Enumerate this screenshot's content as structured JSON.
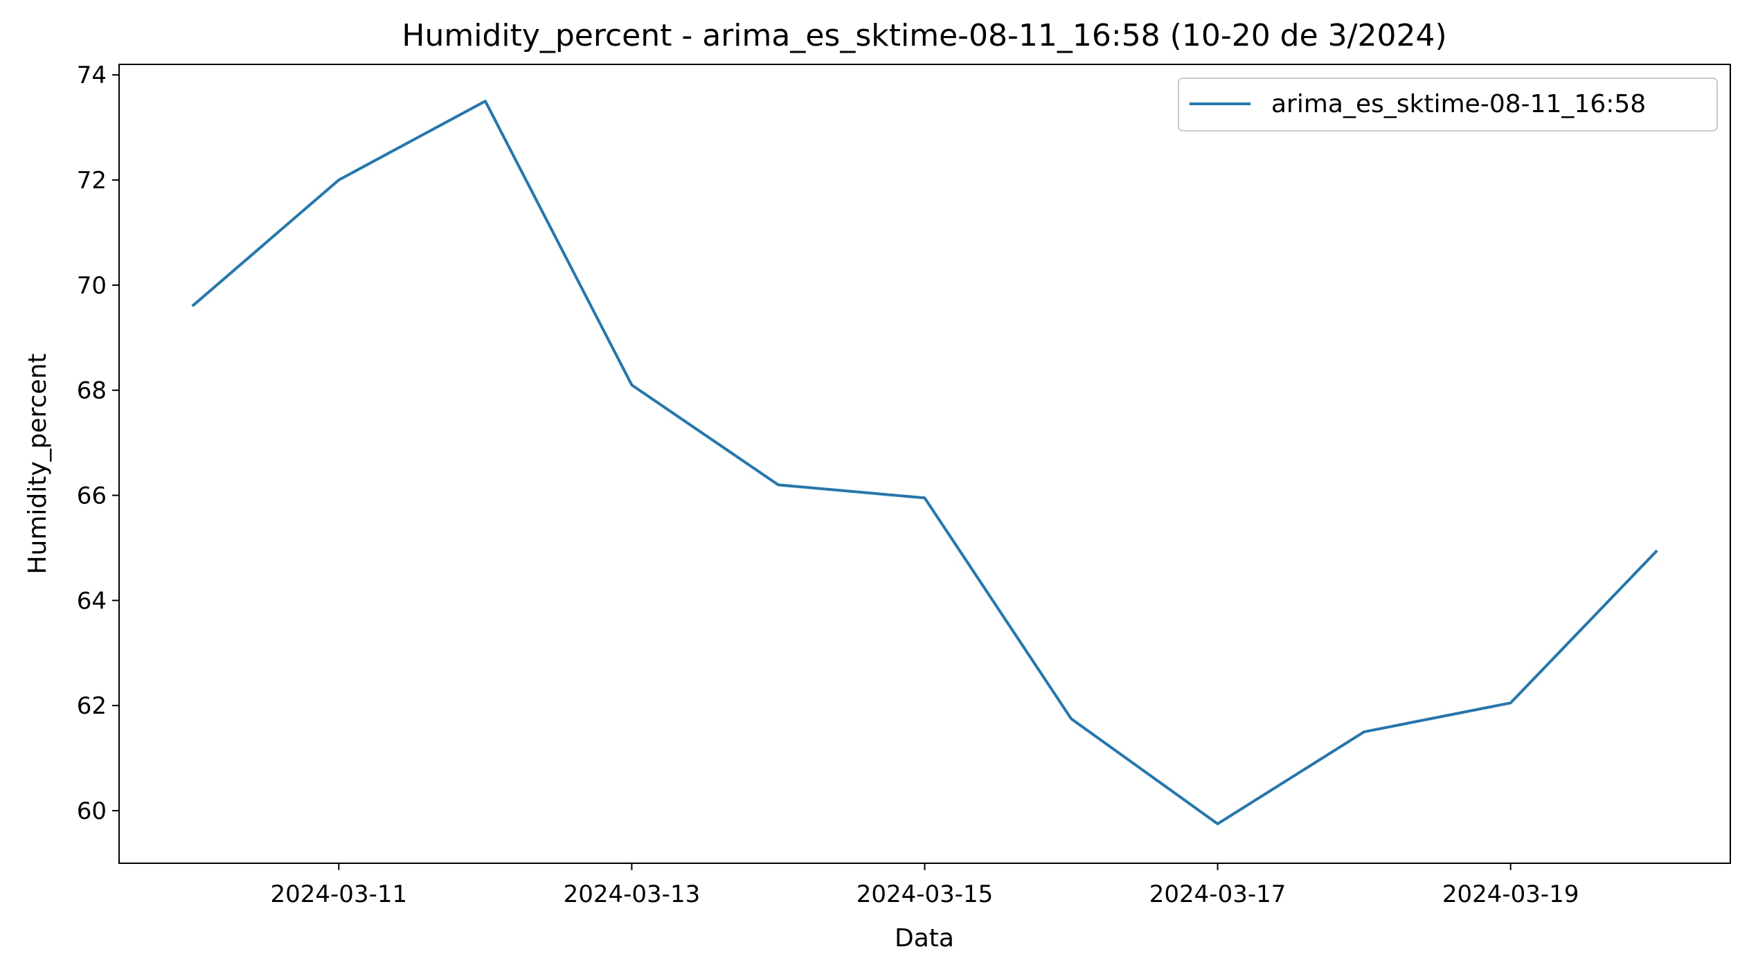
{
  "chart_data": {
    "type": "line",
    "title": "Humidity_percent - arima_es_sktime-08-11_16:58 (10-20 de 3/2024)",
    "xlabel": "Data",
    "ylabel": "Humidity_percent",
    "x": [
      "2024-03-10",
      "2024-03-11",
      "2024-03-12",
      "2024-03-13",
      "2024-03-14",
      "2024-03-15",
      "2024-03-16",
      "2024-03-17",
      "2024-03-18",
      "2024-03-19",
      "2024-03-20"
    ],
    "series": [
      {
        "name": "arima_es_sktime-08-11_16:58",
        "color": "#1f77b4",
        "values": [
          69.6,
          72.0,
          73.5,
          68.1,
          66.2,
          65.95,
          61.75,
          59.75,
          61.5,
          62.05,
          64.95
        ]
      }
    ],
    "xlim": [
      "2024-03-09T12:00",
      "2024-03-20T12:00"
    ],
    "ylim": [
      59.0,
      74.2
    ],
    "xticks": [
      "2024-03-11",
      "2024-03-13",
      "2024-03-15",
      "2024-03-17",
      "2024-03-19"
    ],
    "yticks": [
      60,
      62,
      64,
      66,
      68,
      70,
      72,
      74
    ],
    "grid": false,
    "legend_position": "top-right"
  }
}
